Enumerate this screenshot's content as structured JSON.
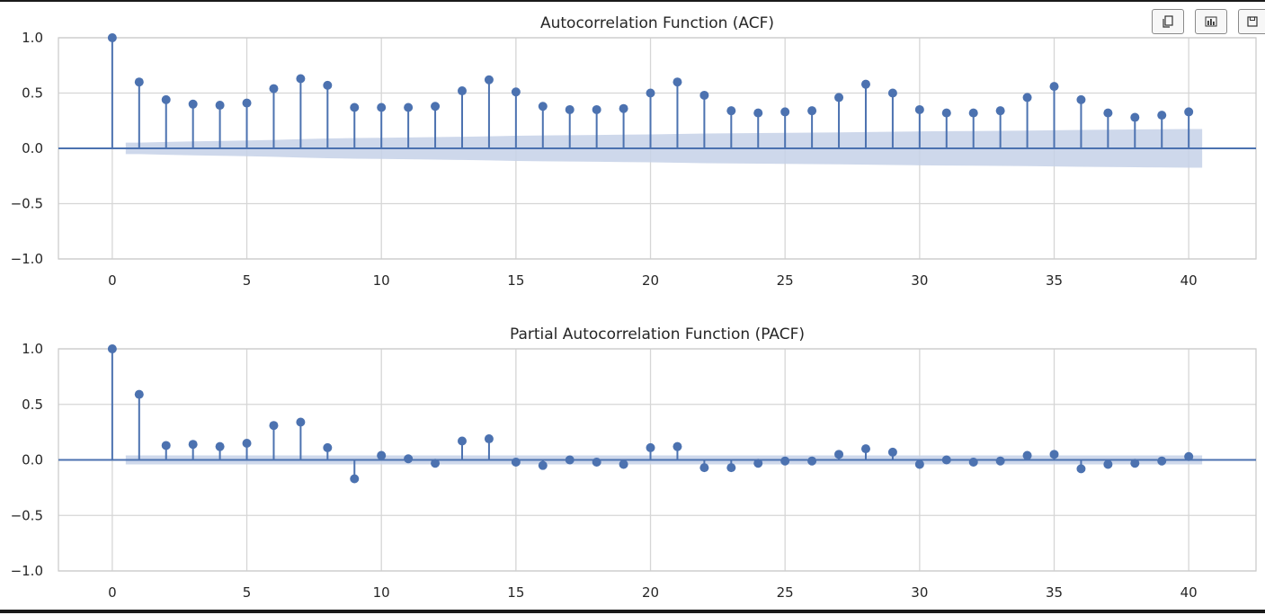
{
  "toolbar": {
    "buttons": [
      {
        "icon": "copy-icon"
      },
      {
        "icon": "bar-chart-icon"
      },
      {
        "icon": "save-icon"
      }
    ]
  },
  "colors": {
    "stem": "#4c72b0",
    "band": "#c5d1e8",
    "grid": "#d6d6d6",
    "axis_text": "#262626",
    "spine": "#cccccc"
  },
  "chart_data": [
    {
      "type": "stem",
      "title": "Autocorrelation Function (ACF)",
      "xlabel": "",
      "ylabel": "",
      "xlim": [
        -2,
        42.5
      ],
      "ylim": [
        -1.0,
        1.0
      ],
      "xticks": [
        0,
        5,
        10,
        15,
        20,
        25,
        30,
        35,
        40
      ],
      "yticks": [
        -1.0,
        -0.5,
        0.0,
        0.5,
        1.0
      ],
      "ytick_labels": [
        "−1.0",
        "−0.5",
        "0.0",
        "0.5",
        "1.0"
      ],
      "grid": true,
      "lags": [
        0,
        1,
        2,
        3,
        4,
        5,
        6,
        7,
        8,
        9,
        10,
        11,
        12,
        13,
        14,
        15,
        16,
        17,
        18,
        19,
        20,
        21,
        22,
        23,
        24,
        25,
        26,
        27,
        28,
        29,
        30,
        31,
        32,
        33,
        34,
        35,
        36,
        37,
        38,
        39,
        40
      ],
      "values": [
        1.0,
        0.6,
        0.44,
        0.4,
        0.39,
        0.41,
        0.54,
        0.63,
        0.57,
        0.37,
        0.37,
        0.37,
        0.38,
        0.52,
        0.62,
        0.51,
        0.38,
        0.35,
        0.35,
        0.36,
        0.5,
        0.6,
        0.48,
        0.34,
        0.32,
        0.33,
        0.34,
        0.46,
        0.58,
        0.5,
        0.35,
        0.32,
        0.32,
        0.34,
        0.46,
        0.56,
        0.44,
        0.32,
        0.28,
        0.3,
        0.33
      ],
      "confint": [
        0.04,
        0.052,
        0.058,
        0.063,
        0.067,
        0.071,
        0.076,
        0.083,
        0.089,
        0.093,
        0.096,
        0.099,
        0.102,
        0.105,
        0.109,
        0.114,
        0.117,
        0.119,
        0.121,
        0.124,
        0.126,
        0.13,
        0.134,
        0.136,
        0.138,
        0.14,
        0.142,
        0.144,
        0.147,
        0.15,
        0.153,
        0.155,
        0.157,
        0.159,
        0.161,
        0.164,
        0.167,
        0.169,
        0.171,
        0.173,
        0.175
      ]
    },
    {
      "type": "stem",
      "title": "Partial Autocorrelation Function (PACF)",
      "xlabel": "",
      "ylabel": "",
      "xlim": [
        -2,
        42.5
      ],
      "ylim": [
        -1.0,
        1.0
      ],
      "xticks": [
        0,
        5,
        10,
        15,
        20,
        25,
        30,
        35,
        40
      ],
      "yticks": [
        -1.0,
        -0.5,
        0.0,
        0.5,
        1.0
      ],
      "ytick_labels": [
        "−1.0",
        "−0.5",
        "0.0",
        "0.5",
        "1.0"
      ],
      "grid": true,
      "lags": [
        0,
        1,
        2,
        3,
        4,
        5,
        6,
        7,
        8,
        9,
        10,
        11,
        12,
        13,
        14,
        15,
        16,
        17,
        18,
        19,
        20,
        21,
        22,
        23,
        24,
        25,
        26,
        27,
        28,
        29,
        30,
        31,
        32,
        33,
        34,
        35,
        36,
        37,
        38,
        39,
        40
      ],
      "values": [
        1.0,
        0.59,
        0.13,
        0.14,
        0.12,
        0.15,
        0.31,
        0.34,
        0.11,
        -0.17,
        0.04,
        0.01,
        -0.03,
        0.17,
        0.19,
        -0.02,
        -0.05,
        0.0,
        -0.02,
        -0.04,
        0.11,
        0.12,
        -0.07,
        -0.07,
        -0.03,
        -0.01,
        -0.01,
        0.05,
        0.1,
        0.07,
        -0.04,
        0.0,
        -0.02,
        -0.01,
        0.04,
        0.05,
        -0.08,
        -0.04,
        -0.03,
        -0.01,
        0.03
      ],
      "confint": [
        0.04,
        0.04,
        0.04,
        0.04,
        0.04,
        0.04,
        0.04,
        0.04,
        0.04,
        0.04,
        0.04,
        0.04,
        0.04,
        0.04,
        0.04,
        0.04,
        0.04,
        0.04,
        0.04,
        0.04,
        0.04,
        0.04,
        0.04,
        0.04,
        0.04,
        0.04,
        0.04,
        0.04,
        0.04,
        0.04,
        0.04,
        0.04,
        0.04,
        0.04,
        0.04,
        0.04,
        0.04,
        0.04,
        0.04,
        0.04,
        0.04
      ]
    }
  ]
}
